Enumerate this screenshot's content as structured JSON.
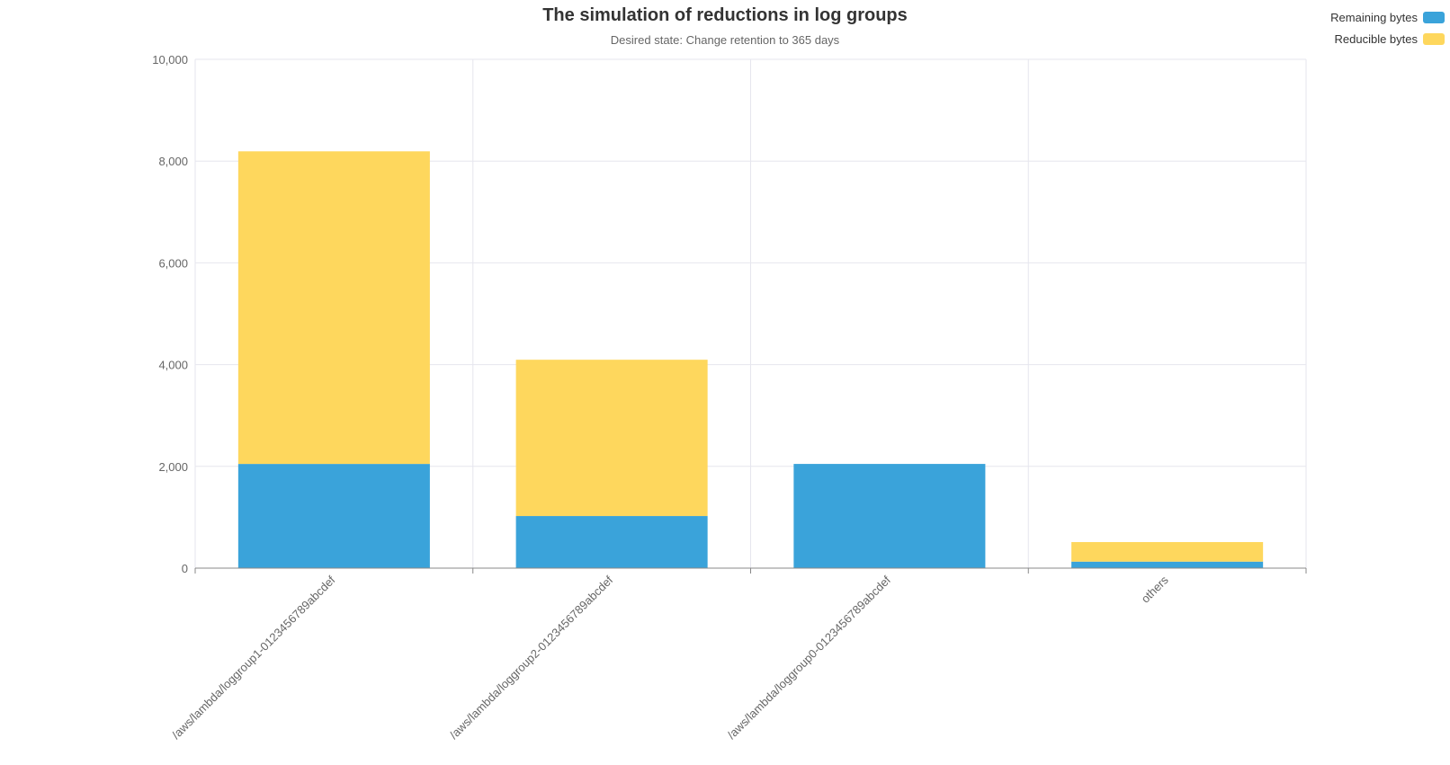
{
  "chart_data": {
    "type": "bar",
    "stacked": true,
    "title": "The simulation of reductions in log groups",
    "subtitle": "Desired state: Change retention to 365 days",
    "categories": [
      "/aws/lambda/loggroup1-0123456789abcdef",
      "/aws/lambda/loggroup2-0123456789abcdef",
      "/aws/lambda/loggroup0-0123456789abcdef",
      "others"
    ],
    "series": [
      {
        "name": "Remaining bytes",
        "color": "#3AA3DA",
        "values": [
          2048,
          1024,
          2048,
          128
        ]
      },
      {
        "name": "Reducible bytes",
        "color": "#FED75D",
        "values": [
          6144,
          3072,
          0,
          384
        ]
      }
    ],
    "ylim": [
      0,
      10000
    ],
    "yticks": [
      0,
      2000,
      4000,
      6000,
      8000,
      10000
    ],
    "ytick_labels": [
      "0",
      "2,000",
      "4,000",
      "6,000",
      "8,000",
      "10,000"
    ],
    "grid": true,
    "legend_position": "top-right",
    "xlabel": "",
    "ylabel": ""
  }
}
